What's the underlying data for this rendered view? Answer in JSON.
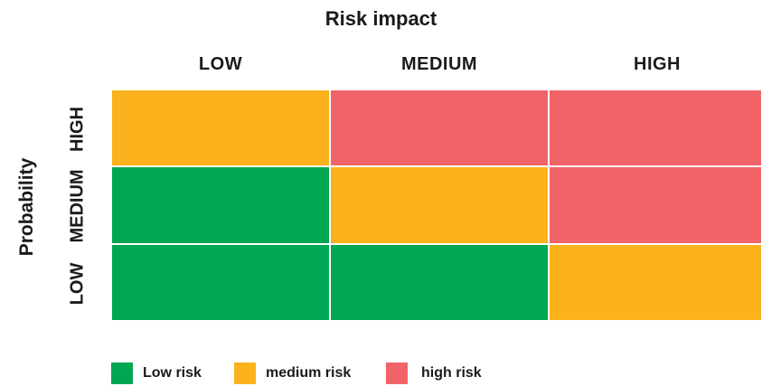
{
  "title": "Risk impact",
  "y_axis_title": "Probability",
  "columns": [
    "LOW",
    "MEDIUM",
    "HIGH"
  ],
  "rows": [
    "HIGH",
    "MEDIUM",
    "LOW"
  ],
  "colors": {
    "low": "#00a651",
    "medium": "#fbb21d",
    "high": "#f06368"
  },
  "matrix": [
    [
      "medium",
      "high",
      "high"
    ],
    [
      "low",
      "medium",
      "high"
    ],
    [
      "low",
      "low",
      "medium"
    ]
  ],
  "legend": [
    {
      "key": "low",
      "label": "Low risk"
    },
    {
      "key": "medium",
      "label": "medium risk"
    },
    {
      "key": "high",
      "label": "high risk"
    }
  ]
}
